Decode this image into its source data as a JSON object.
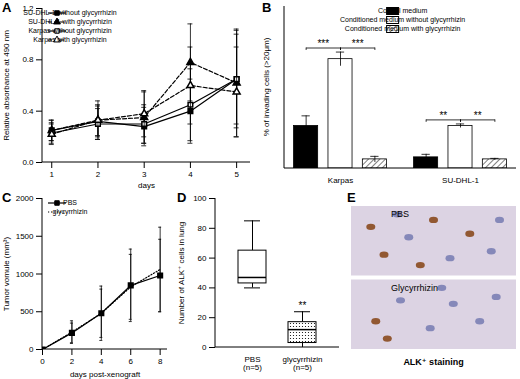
{
  "chart_data": [
    {
      "type": "line",
      "title": "A",
      "xlabel": "days",
      "ylabel": "Relative absorbance at 490 nm",
      "x": [
        1,
        2,
        3,
        4,
        5
      ],
      "xlim": [
        0.8,
        5.3
      ],
      "xticks": [
        1,
        2,
        3,
        4,
        5
      ],
      "ylim": [
        0,
        1.2
      ],
      "yticks": [
        {
          "value": 0,
          "label": "0.0"
        },
        0.4,
        0.8,
        1.2
      ],
      "legend": "upper left",
      "series": [
        {
          "name": "SU-DHL-1 without glycyrrhizin",
          "color": "#000000",
          "marker": "square",
          "line_style": "solid",
          "values": [
            0.25,
            0.32,
            0.28,
            0.4,
            0.65
          ],
          "errors": [
            0.08,
            0.12,
            0.15,
            0.25,
            0.35
          ]
        },
        {
          "name": "SU-DHL-1 with glycyrrhizin",
          "color": "#000000",
          "marker": "triangle",
          "line_style": "dashed",
          "values": [
            0.25,
            0.33,
            0.35,
            0.78,
            0.62
          ],
          "errors": [
            0.08,
            0.15,
            0.2,
            0.3,
            0.42
          ]
        },
        {
          "name": "Karpas without glycyrrhizin",
          "color": "#000000",
          "marker": "open-square",
          "line_style": "solid",
          "values": [
            0.23,
            0.3,
            0.3,
            0.45,
            0.65
          ],
          "errors": [
            0.08,
            0.12,
            0.15,
            0.28,
            0.38
          ]
        },
        {
          "name": "Karpas with glycyrrhizin",
          "color": "#000000",
          "marker": "open-triangle",
          "line_style": "dashed",
          "values": [
            0.22,
            0.33,
            0.38,
            0.6,
            0.55
          ],
          "errors": [
            0.08,
            0.12,
            0.18,
            0.3,
            0.35
          ]
        }
      ]
    },
    {
      "type": "bar",
      "title": "B",
      "ylabel": "% of invading cells (>20μm)",
      "categories": [
        "Karpas",
        "SU-DHL-1"
      ],
      "ylim": [
        0,
        80
      ],
      "tick_labels": "x",
      "legend": "upper right",
      "series": [
        {
          "name": "Control medium",
          "color": "#000000",
          "values": [
            21,
            5.5
          ],
          "errors": [
            5,
            1.5
          ]
        },
        {
          "name": "Conditioned medium without glycyrrhizin",
          "color": "#ffffff",
          "values": [
            54,
            21
          ],
          "errors": [
            3.5,
            1
          ]
        },
        {
          "name": "Conditioned medium with glycyrrhizin",
          "color": "#ffffff",
          "marker": "hatch",
          "values": [
            4.5,
            4.5
          ],
          "errors": [
            1.5,
            0.5
          ]
        }
      ],
      "annotations": [
        {
          "category": "Karpas",
          "from": "Control medium",
          "to": "Conditioned medium without glycyrrhizin",
          "label": "***"
        },
        {
          "category": "Karpas",
          "from": "Conditioned medium without glycyrrhizin",
          "to": "Conditioned medium with glycyrrhizin",
          "label": "***"
        },
        {
          "category": "SU-DHL-1",
          "from": "Control medium",
          "to": "Conditioned medium without glycyrrhizin",
          "label": "**"
        },
        {
          "category": "SU-DHL-1",
          "from": "Conditioned medium without glycyrrhizin",
          "to": "Conditioned medium with glycyrrhizin",
          "label": "**"
        }
      ]
    },
    {
      "type": "line",
      "title": "C",
      "xlabel": "days post-xenograft",
      "ylabel": "Tumor vomule (mm³)",
      "x": [
        0,
        2,
        4,
        6,
        8
      ],
      "xlim": [
        0,
        8.5
      ],
      "xticks": [
        0,
        2,
        4,
        6,
        8
      ],
      "ylim": [
        0,
        2000
      ],
      "yticks": [
        0,
        500,
        1000,
        1500,
        2000
      ],
      "legend": "upper left",
      "series": [
        {
          "name": "PBS",
          "color": "#000000",
          "marker": "square",
          "line_style": "solid",
          "values": [
            0,
            220,
            480,
            850,
            980
          ],
          "errors": [
            0,
            130,
            320,
            480,
            480
          ]
        },
        {
          "name": "glycyrrhizin",
          "color": "#000000",
          "marker": "none",
          "line_style": "dotted",
          "values": [
            0,
            230,
            480,
            830,
            1060
          ],
          "errors": [
            0,
            150,
            360,
            430,
            560
          ]
        }
      ]
    },
    {
      "type": "box",
      "title": "D",
      "ylabel": "Number of ALK⁺ cells in lung",
      "categories": [
        "PBS\n(n=5)",
        "glycyrrhizin\n(n=5)"
      ],
      "ylim": [
        0,
        100
      ],
      "yticks": [
        0,
        20,
        40,
        60,
        80,
        100
      ],
      "boxes": [
        {
          "min": 40,
          "q1": 43,
          "median": 47,
          "q3": 65,
          "max": 85,
          "color": "#ffffff"
        },
        {
          "min": 0,
          "q1": 3,
          "median": 12,
          "q3": 17,
          "max": 24,
          "color": "#ffffff",
          "marker": "dots"
        }
      ],
      "annotations": [
        {
          "category": "glycyrrhizin\n(n=5)",
          "label": "**"
        }
      ]
    },
    {
      "type": "image",
      "title": "E",
      "labels": [
        "PBS",
        "Glycyrrhizin"
      ],
      "caption": "ALK⁺ staining"
    }
  ]
}
